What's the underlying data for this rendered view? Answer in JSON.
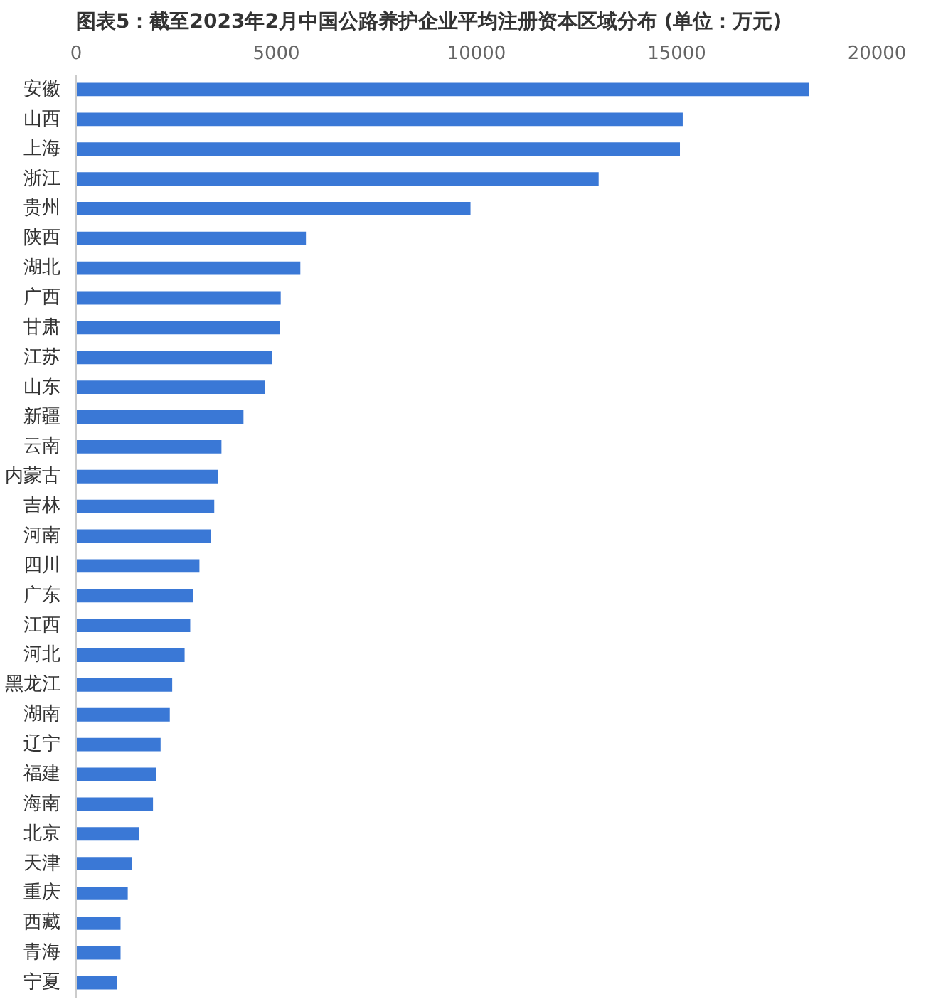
{
  "chart_data": {
    "type": "bar",
    "orientation": "horizontal",
    "title": "图表5：截至2023年2月中国公路养护企业平均注册资本区域分布 (单位：万元)",
    "categories": [
      "安徽",
      "山西",
      "上海",
      "浙江",
      "贵州",
      "陕西",
      "湖北",
      "广西",
      "甘肃",
      "江苏",
      "山东",
      "新疆",
      "云南",
      "内蒙古",
      "吉林",
      "河南",
      "四川",
      "广东",
      "江西",
      "河北",
      "黑龙江",
      "湖南",
      "辽宁",
      "福建",
      "海南",
      "北京",
      "天津",
      "重庆",
      "西藏",
      "青海",
      "宁夏"
    ],
    "values": [
      18300,
      15150,
      15080,
      13050,
      9850,
      5740,
      5600,
      5110,
      5080,
      4890,
      4710,
      4180,
      3630,
      3550,
      3450,
      3370,
      3080,
      2920,
      2850,
      2710,
      2400,
      2340,
      2110,
      2000,
      1920,
      1580,
      1400,
      1290,
      1110,
      1110,
      1030
    ],
    "color": "#3a78d6",
    "xlim": [
      0,
      20000
    ],
    "xticks": [
      0,
      5000,
      10000,
      15000,
      20000
    ],
    "grid": false
  }
}
